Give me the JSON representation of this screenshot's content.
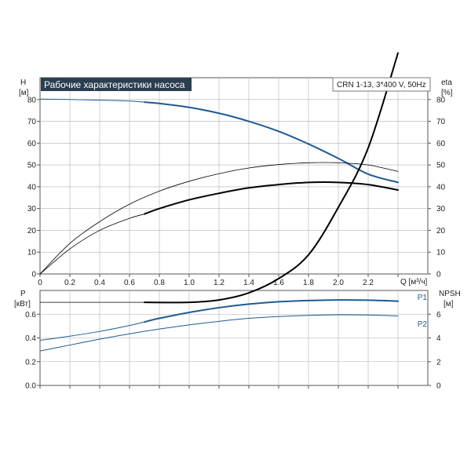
{
  "chart_data": {
    "type": "line",
    "title": "Рабочие характеристики насоса",
    "model": "CRN 1-13, 3*400 V, 50Hz",
    "colors": {
      "blue": "#1f5a94",
      "black": "#000000",
      "grid": "#b0b0b0",
      "title_bg": "#2b3e50"
    },
    "x_axis": {
      "label": "Q [м³/ч]",
      "ticks": [
        0,
        0.2,
        0.4,
        0.6,
        0.8,
        1.0,
        1.2,
        1.4,
        1.6,
        1.8,
        2.0,
        2.2
      ],
      "tick_labels": [
        "0",
        "0.2",
        "0.4",
        "0.6",
        "0.8",
        "1.0",
        "1.2",
        "1.4",
        "1.6",
        "1.8",
        "2.0",
        "2.2"
      ],
      "xlim": [
        0,
        2.6
      ]
    },
    "panels": [
      {
        "name": "head-efficiency",
        "left_axis": {
          "label_top": "H",
          "label_unit": "[м]",
          "ticks": [
            0,
            10,
            20,
            30,
            40,
            50,
            60,
            70,
            80
          ],
          "tick_labels": [
            "0",
            "10",
            "20",
            "30",
            "40",
            "50",
            "60",
            "70",
            "80"
          ],
          "ylim": [
            0,
            90
          ]
        },
        "right_axis": {
          "label_top": "eta",
          "label_unit": "[%]",
          "ticks": [
            0,
            10,
            20,
            30,
            40,
            50,
            60,
            70,
            80
          ],
          "tick_labels": [
            "0",
            "10",
            "20",
            "30",
            "40",
            "50",
            "60",
            "70",
            "80"
          ],
          "ylim": [
            0,
            90
          ]
        },
        "grid": true,
        "series": [
          {
            "id": "head-thin",
            "color": "blue",
            "width": 1,
            "x": [
              0,
              0.2,
              0.4,
              0.6,
              0.7
            ],
            "y": [
              80.2,
              80.0,
              79.7,
              79.3,
              78.8
            ]
          },
          {
            "id": "head-thick",
            "color": "blue",
            "width": 2,
            "x": [
              0.7,
              0.8,
              1.0,
              1.2,
              1.4,
              1.6,
              1.8,
              2.0,
              2.2,
              2.4
            ],
            "y": [
              78.8,
              78.2,
              76.4,
              73.7,
              70.0,
              65.4,
              59.6,
              53.0,
              45.8,
              42.0
            ]
          },
          {
            "id": "eta-total",
            "color": "black",
            "width": 0.8,
            "x": [
              0,
              0.2,
              0.4,
              0.6,
              0.8,
              1.0,
              1.2,
              1.4,
              1.6,
              1.8,
              2.0,
              2.2,
              2.4
            ],
            "y": [
              0,
              14,
              24,
              32,
              38,
              42.5,
              46,
              48.6,
              50.2,
              51,
              51,
              50,
              47
            ]
          },
          {
            "id": "eta-thin",
            "color": "black",
            "width": 0.8,
            "x": [
              0,
              0.2,
              0.4,
              0.6,
              0.7
            ],
            "y": [
              0,
              11.5,
              20,
              25.5,
              27.5
            ]
          },
          {
            "id": "eta-pump",
            "color": "black",
            "width": 2,
            "x": [
              0.7,
              0.8,
              1.0,
              1.2,
              1.4,
              1.6,
              1.8,
              2.0,
              2.2,
              2.4
            ],
            "y": [
              27.5,
              30,
              34,
              37,
              39.5,
              41,
              42,
              42,
              41,
              38.5
            ]
          }
        ]
      },
      {
        "name": "power-npsh",
        "left_axis": {
          "label_top": "P",
          "label_unit": "[кВт]",
          "ticks": [
            0,
            0.2,
            0.4,
            0.6
          ],
          "tick_labels": [
            "0.0",
            "0.2",
            "0.4",
            "0.6"
          ],
          "ylim": [
            0,
            0.8
          ]
        },
        "right_axis": {
          "label_top": "NPSH",
          "label_unit": "[м]",
          "ticks": [
            0,
            2,
            4,
            6
          ],
          "tick_labels": [
            "0",
            "2",
            "4",
            "6"
          ],
          "ylim": [
            0,
            8
          ]
        },
        "grid": true,
        "series": [
          {
            "id": "p1-thin",
            "name": "P1",
            "color": "blue",
            "width": 1,
            "x": [
              0,
              0.2,
              0.4,
              0.6,
              0.7
            ],
            "y": [
              0.38,
              0.415,
              0.455,
              0.505,
              0.535
            ]
          },
          {
            "id": "p1-thick",
            "color": "blue",
            "width": 2,
            "x": [
              0.7,
              0.8,
              1.0,
              1.2,
              1.4,
              1.6,
              1.8,
              2.0,
              2.2,
              2.4
            ],
            "y": [
              0.535,
              0.565,
              0.615,
              0.655,
              0.685,
              0.705,
              0.715,
              0.72,
              0.718,
              0.71
            ]
          },
          {
            "id": "p2",
            "name": "P2",
            "color": "blue",
            "width": 1,
            "x": [
              0,
              0.2,
              0.4,
              0.6,
              0.8,
              1.0,
              1.2,
              1.4,
              1.6,
              1.8,
              2.0,
              2.2,
              2.4
            ],
            "y": [
              0.29,
              0.34,
              0.39,
              0.435,
              0.475,
              0.51,
              0.54,
              0.565,
              0.58,
              0.59,
              0.595,
              0.593,
              0.585
            ]
          },
          {
            "id": "npsh-thin",
            "color": "black",
            "width": 0.8,
            "x": [
              0,
              0.35,
              0.7
            ],
            "y": [
              0.7,
              0.7,
              0.7
            ]
          },
          {
            "id": "npsh-thick",
            "color": "black",
            "width": 2,
            "x": [
              0.7,
              1.0,
              1.2,
              1.4,
              1.6,
              1.8,
              2.0,
              2.2,
              2.4
            ],
            "y": [
              0.7,
              0.7,
              0.72,
              0.78,
              0.9,
              1.1,
              1.5,
              2.0,
              2.8
            ]
          }
        ],
        "curve_labels": [
          {
            "text": "P1",
            "x": 2.53,
            "y": 0.74
          },
          {
            "text": "P2",
            "x": 2.53,
            "y": 0.515
          }
        ]
      }
    ]
  }
}
